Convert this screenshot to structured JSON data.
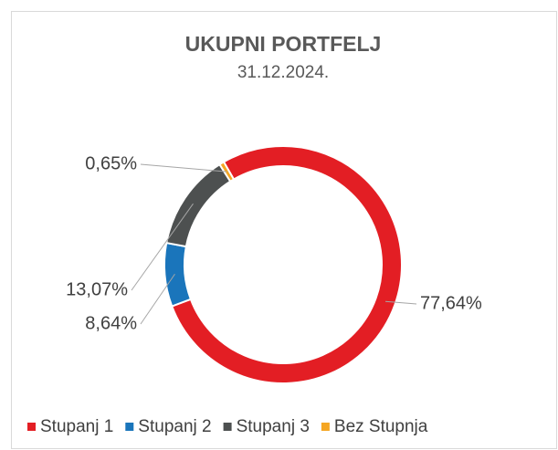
{
  "chart_data": {
    "type": "donut",
    "title": "UKUPNI PORTFELJ",
    "subtitle": "31.12.2024.",
    "categories": [
      "Stupanj 1",
      "Stupanj 2",
      "Stupanj 3",
      "Bez Stupnja"
    ],
    "values": [
      77.64,
      8.64,
      13.07,
      0.65
    ],
    "value_labels": [
      "77,64%",
      "8,64%",
      "13,07%",
      "0,65%"
    ],
    "colors": [
      "#e31e24",
      "#1a75bb",
      "#4d5050",
      "#f5a623"
    ],
    "legend": "bottom"
  }
}
